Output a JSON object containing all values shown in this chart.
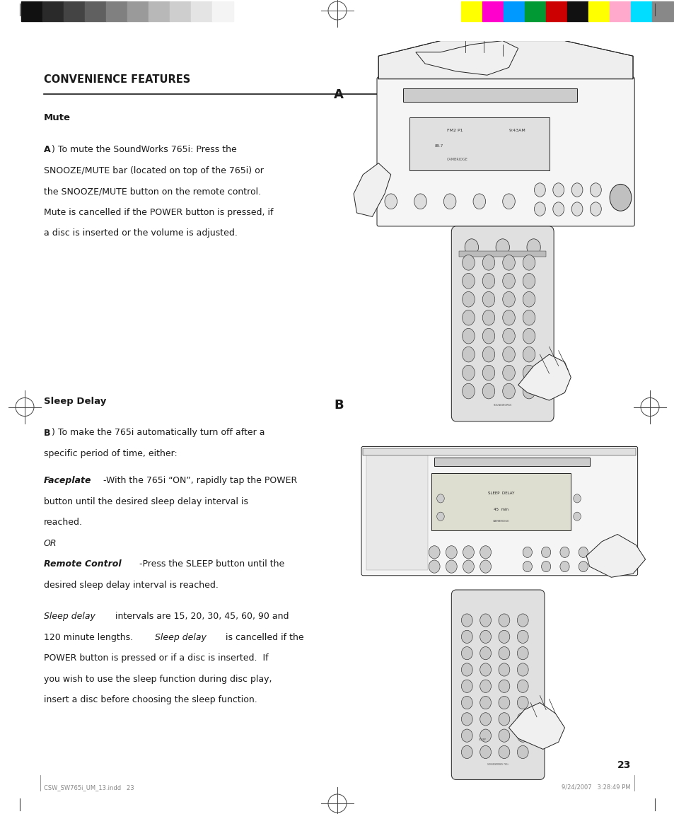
{
  "page_width": 9.54,
  "page_height": 11.51,
  "bg_color": "#ffffff",
  "top_bar_colors_left": [
    "#111111",
    "#2a2a2a",
    "#444444",
    "#606060",
    "#808080",
    "#9a9a9a",
    "#b8b8b8",
    "#cecece",
    "#e4e4e4",
    "#f4f4f4"
  ],
  "top_bar_colors_right": [
    "#ffff00",
    "#ff00cc",
    "#0099ff",
    "#009933",
    "#cc0000",
    "#111111",
    "#ffff00",
    "#ffaacc",
    "#00ddff",
    "#888888"
  ],
  "section_title": "CONVENIENCE FEATURES",
  "mute_heading": "Mute",
  "label_A": "A",
  "label_B": "B",
  "sleep_heading": "Sleep Delay",
  "page_number": "23",
  "footer_left": "CSW_SW765i_UM_13.indd   23",
  "footer_right": "9/24/2007   3:28:49 PM",
  "text_color": "#1a1a1a",
  "line_color": "#333333",
  "device_color": "#e8e8e8",
  "device_edge": "#555555"
}
